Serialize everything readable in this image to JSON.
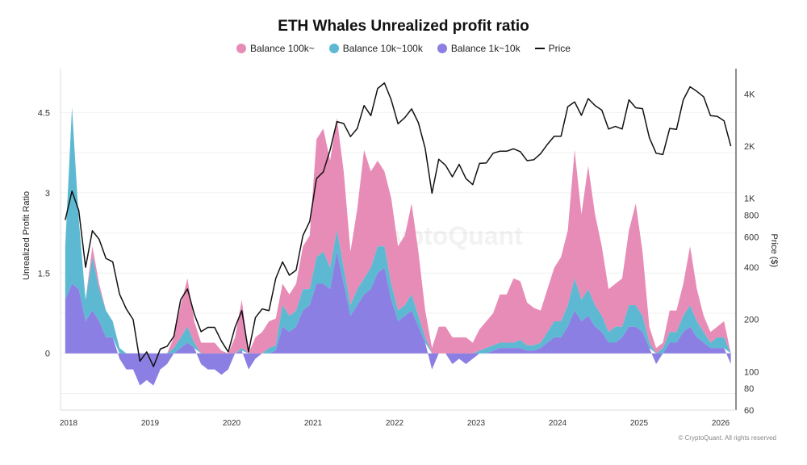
{
  "chart_data": {
    "type": "area",
    "title": "ETH Whales Unrealized profit ratio",
    "ylabel": "Unrealized Profit Ratio",
    "y2label": "Price ($)",
    "ylim": [
      -1.06,
      5.32
    ],
    "yticks": [
      "0",
      "1.5",
      "3",
      "4.5"
    ],
    "y2lim": [
      60,
      5600
    ],
    "y2scale": "log",
    "y2ticks": [
      "4K",
      "2K",
      "1K",
      "800",
      "600",
      "400",
      "200",
      "100",
      "80",
      "60"
    ],
    "xticks": [
      "2018",
      "2019",
      "2020",
      "2021",
      "2022",
      "2023",
      "2024",
      "2025",
      "2026"
    ],
    "grid": "horizontal",
    "legend_position": "top",
    "watermark": "CryptoQuant",
    "colors": {
      "b100k": "#e78cb6",
      "b10k": "#5db9d2",
      "b1k": "#8c7fe3",
      "price": "#111111"
    },
    "series": [
      {
        "name": "Balance 100k~",
        "key": "b100k"
      },
      {
        "name": "Balance 10k~100k",
        "key": "b10k"
      },
      {
        "name": "Balance 1k~10k",
        "key": "b1k"
      },
      {
        "name": "Price",
        "key": "price"
      }
    ],
    "dates": [
      "2017-12",
      "2018-01",
      "2018-02",
      "2018-03",
      "2018-04",
      "2018-05",
      "2018-06",
      "2018-07",
      "2018-08",
      "2018-09",
      "2018-10",
      "2018-11",
      "2018-12",
      "2019-01",
      "2019-02",
      "2019-03",
      "2019-04",
      "2019-05",
      "2019-06",
      "2019-07",
      "2019-08",
      "2019-09",
      "2019-10",
      "2019-11",
      "2019-12",
      "2020-01",
      "2020-02",
      "2020-03",
      "2020-04",
      "2020-05",
      "2020-06",
      "2020-07",
      "2020-08",
      "2020-09",
      "2020-10",
      "2020-11",
      "2020-12",
      "2021-01",
      "2021-02",
      "2021-03",
      "2021-04",
      "2021-05",
      "2021-06",
      "2021-07",
      "2021-08",
      "2021-09",
      "2021-10",
      "2021-11",
      "2021-12",
      "2022-01",
      "2022-02",
      "2022-03",
      "2022-04",
      "2022-05",
      "2022-06",
      "2022-07",
      "2022-08",
      "2022-09",
      "2022-10",
      "2022-11",
      "2022-12",
      "2023-01",
      "2023-02",
      "2023-03",
      "2023-04",
      "2023-05",
      "2023-06",
      "2023-07",
      "2023-08",
      "2023-09",
      "2023-10",
      "2023-11",
      "2023-12",
      "2024-01",
      "2024-02",
      "2024-03",
      "2024-04",
      "2024-05",
      "2024-06",
      "2024-07",
      "2024-08",
      "2024-09",
      "2024-10",
      "2024-11",
      "2024-12",
      "2025-01",
      "2025-02",
      "2025-03",
      "2025-04",
      "2025-05",
      "2025-06",
      "2025-07",
      "2025-08",
      "2025-09",
      "2025-10",
      "2025-11",
      "2025-12",
      "2026-01",
      "2026-02"
    ],
    "price": [
      750,
      1100,
      850,
      400,
      650,
      580,
      450,
      430,
      280,
      230,
      200,
      115,
      130,
      107,
      135,
      140,
      160,
      260,
      300,
      215,
      170,
      180,
      180,
      150,
      130,
      180,
      225,
      130,
      205,
      230,
      225,
      345,
      430,
      360,
      385,
      610,
      735,
      1300,
      1420,
      1900,
      2770,
      2700,
      2270,
      2530,
      3430,
      3000,
      4300,
      4630,
      3700,
      2690,
      2920,
      3280,
      2730,
      1940,
      1070,
      1680,
      1550,
      1330,
      1570,
      1300,
      1200,
      1590,
      1600,
      1820,
      1870,
      1870,
      1930,
      1860,
      1650,
      1670,
      1810,
      2050,
      2280,
      2280,
      3380,
      3600,
      3010,
      3760,
      3430,
      3230,
      2510,
      2600,
      2510,
      3700,
      3330,
      3290,
      2240,
      1820,
      1790,
      2530,
      2500,
      3700,
      4400,
      4140,
      3850,
      3000,
      2970,
      2800,
      2000
    ],
    "b1k": [
      1.0,
      1.3,
      1.2,
      0.6,
      0.8,
      0.6,
      0.3,
      0.3,
      -0.1,
      -0.3,
      -0.3,
      -0.6,
      -0.5,
      -0.6,
      -0.3,
      -0.2,
      0,
      0.1,
      0.2,
      0.1,
      -0.2,
      -0.3,
      -0.3,
      -0.4,
      -0.3,
      0,
      0.05,
      -0.3,
      -0.1,
      0,
      0,
      0.05,
      0.5,
      0.4,
      0.5,
      0.8,
      0.9,
      1.3,
      1.3,
      1.2,
      1.9,
      1.3,
      0.7,
      0.9,
      1.1,
      1.2,
      1.5,
      1.6,
      1.0,
      0.6,
      0.7,
      0.8,
      0.5,
      0.2,
      -0.3,
      0,
      0,
      -0.2,
      -0.1,
      -0.2,
      -0.1,
      0,
      0,
      0.05,
      0.1,
      0.1,
      0.1,
      0.1,
      0.05,
      0.05,
      0.1,
      0.2,
      0.3,
      0.3,
      0.5,
      0.8,
      0.6,
      0.7,
      0.5,
      0.4,
      0.2,
      0.2,
      0.3,
      0.5,
      0.5,
      0.4,
      0.1,
      -0.2,
      0,
      0.2,
      0.2,
      0.4,
      0.5,
      0.3,
      0.2,
      0.1,
      0.1,
      0.1,
      -0.2
    ],
    "b10k": [
      1.0,
      3.3,
      1.3,
      0.4,
      1.0,
      0.6,
      0.5,
      0.3,
      0.1,
      0,
      0,
      0,
      0,
      0,
      0,
      0,
      0.1,
      0.2,
      0.3,
      0.1,
      0,
      0,
      0,
      0,
      0,
      0,
      0.05,
      0,
      0,
      0,
      0.1,
      0.1,
      0.4,
      0.3,
      0.3,
      0.4,
      0.3,
      0.5,
      0.6,
      0.4,
      0.4,
      0.3,
      0.2,
      0.3,
      0.3,
      0.4,
      0.5,
      0.4,
      0.3,
      0.2,
      0.2,
      0.3,
      0.2,
      0.1,
      0,
      0,
      0,
      0,
      0,
      0,
      0,
      0.05,
      0.1,
      0.1,
      0.1,
      0.1,
      0.1,
      0.15,
      0.1,
      0.1,
      0.1,
      0.2,
      0.3,
      0.3,
      0.4,
      0.6,
      0.4,
      0.5,
      0.4,
      0.3,
      0.2,
      0.3,
      0.2,
      0.4,
      0.4,
      0.3,
      0.1,
      0,
      0.1,
      0.2,
      0.2,
      0.3,
      0.4,
      0.3,
      0.2,
      0.1,
      0.2,
      0.2,
      0
    ],
    "b100k": [
      0,
      0,
      0,
      0,
      0.2,
      0.1,
      0,
      0,
      0,
      0,
      0,
      0,
      0,
      0,
      0,
      0,
      0.2,
      0.6,
      0.9,
      0.4,
      0.2,
      0.2,
      0.2,
      0.05,
      0,
      0.3,
      0.9,
      0,
      0.3,
      0.4,
      0.5,
      0.5,
      0.4,
      0.4,
      0.5,
      0.8,
      1.0,
      2.2,
      2.3,
      2.0,
      2.1,
      1.8,
      1.0,
      1.5,
      2.4,
      1.8,
      1.6,
      1.4,
      1.6,
      1.2,
      1.3,
      1.7,
      1.2,
      0.5,
      0.1,
      0.5,
      0.5,
      0.3,
      0.3,
      0.3,
      0.2,
      0.4,
      0.5,
      0.6,
      0.9,
      0.9,
      1.2,
      1.1,
      0.8,
      0.7,
      0.6,
      0.8,
      1.0,
      1.2,
      1.4,
      2.4,
      1.6,
      2.3,
      1.7,
      1.3,
      0.8,
      0.8,
      0.9,
      1.4,
      1.9,
      1.2,
      0.3,
      0.1,
      0.1,
      0.4,
      0.4,
      0.6,
      1.1,
      0.6,
      0.3,
      0.2,
      0.2,
      0.3,
      0
    ]
  },
  "copyright": "© CryptoQuant. All rights reserved"
}
